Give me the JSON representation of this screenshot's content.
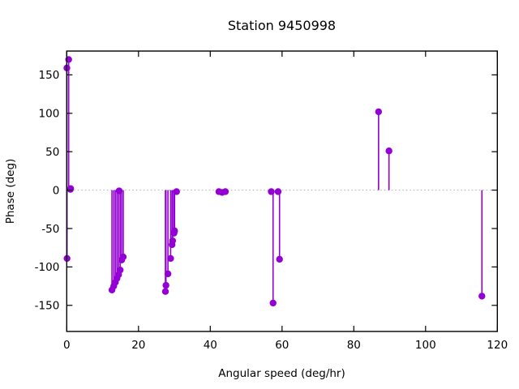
{
  "window": {
    "title": "Station 9450998"
  },
  "chart_data": {
    "type": "stem",
    "title": "Station 9450998",
    "xlabel": "Angular speed (deg/hr)",
    "ylabel": "Phase (deg)",
    "xlim": [
      0,
      120
    ],
    "ylim": [
      -184,
      181
    ],
    "xticks": [
      0,
      20,
      40,
      60,
      80,
      100,
      120
    ],
    "yticks": [
      -150,
      -100,
      -50,
      0,
      50,
      100,
      150
    ],
    "grid": false,
    "zero_line": true,
    "legend_position": "none",
    "marker": "filled-circle",
    "stem_color": "#9400d3",
    "marker_color": "#9400d3",
    "zero_line_color": "#aaaaaa",
    "axis_color": "#000000",
    "background_color": "#ffffff",
    "points": [
      [
        0.04,
        159
      ],
      [
        0.08,
        -89
      ],
      [
        0.54,
        170
      ],
      [
        1.02,
        1
      ],
      [
        1.1,
        2
      ],
      [
        12.6,
        -130
      ],
      [
        13.1,
        -125
      ],
      [
        13.55,
        -120
      ],
      [
        14.0,
        -115
      ],
      [
        14.45,
        -110
      ],
      [
        14.9,
        -104
      ],
      [
        15.3,
        -91
      ],
      [
        15.75,
        -87
      ],
      [
        14.6,
        -1
      ],
      [
        27.5,
        -132
      ],
      [
        27.65,
        -124
      ],
      [
        28.2,
        -109
      ],
      [
        28.95,
        -89
      ],
      [
        29.35,
        -71
      ],
      [
        29.5,
        -66
      ],
      [
        29.9,
        -56
      ],
      [
        30.05,
        -53
      ],
      [
        30.6,
        -2
      ],
      [
        42.4,
        -2
      ],
      [
        43.3,
        -3
      ],
      [
        44.2,
        -2
      ],
      [
        57.0,
        -2
      ],
      [
        57.5,
        -147
      ],
      [
        58.9,
        -2
      ],
      [
        59.3,
        -90
      ],
      [
        86.9,
        102
      ],
      [
        89.8,
        51
      ],
      [
        115.7,
        -138
      ]
    ]
  }
}
